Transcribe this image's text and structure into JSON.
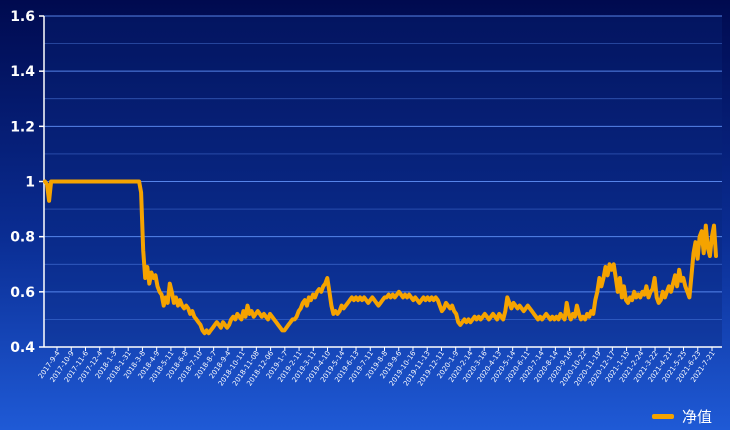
{
  "chart_data": {
    "type": "line",
    "title": "",
    "xlabel": "",
    "ylabel": "",
    "ylim": [
      0.4,
      1.6
    ],
    "yticks": [
      "0.4",
      "0.6",
      "0.8",
      "1",
      "1.2",
      "1.4",
      "1.6"
    ],
    "grid": true,
    "legend_position": "bottom-right",
    "colors": {
      "line": "#f5a300",
      "background_top": "#000a4f",
      "background_bottom": "#1f5ad6",
      "grid": "#5f8ff5"
    },
    "x_ticks": [
      "2017-9-4",
      "2017-10-9",
      "2017-11-6",
      "2017-12-4",
      "2018-1-3",
      "2018-1-31",
      "2018-3-8",
      "2018-4-9",
      "2018-5-11",
      "2018-6-8",
      "2018-7-10",
      "2018-8-7",
      "2018-9-4",
      "2018-10-11",
      "2018-11-08",
      "2018-12-06",
      "2019-1-7",
      "2019-2-11",
      "2019-3-11",
      "2019-4-10",
      "2019-5-14",
      "2019-6-13",
      "2019-7-11",
      "2019-8-8",
      "2019-9-6",
      "2019-10-16",
      "2019-11-13",
      "2019-12-11",
      "2020-1-9",
      "2020-2-14",
      "2020-3-16",
      "2020-4-13",
      "2020-5-14",
      "2020-6-11",
      "2020-7-14",
      "2020-8-14",
      "2020-9-16",
      "2020-10-22",
      "2020-11-19",
      "2020-12-17",
      "2021-1-15",
      "2021-2-24",
      "2021-3-22",
      "2021-4-21",
      "2021-5-25",
      "2021-6-23",
      "2021-7-21"
    ],
    "series": [
      {
        "name": "净值",
        "values": [
          1.0,
          0.99,
          0.93,
          1.0,
          1.0,
          1.0,
          1.0,
          1.0,
          1.0,
          1.0,
          1.0,
          1.0,
          1.0,
          1.0,
          1.0,
          1.0,
          1.0,
          1.0,
          1.0,
          1.0,
          1.0,
          1.0,
          1.0,
          1.0,
          1.0,
          1.0,
          1.0,
          1.0,
          1.0,
          1.0,
          1.0,
          1.0,
          1.0,
          1.0,
          1.0,
          1.0,
          1.0,
          1.0,
          1.0,
          1.0,
          1.0,
          1.0,
          1.0,
          1.0,
          1.0,
          1.0,
          1.0,
          0.96,
          0.75,
          0.65,
          0.69,
          0.63,
          0.67,
          0.65,
          0.66,
          0.62,
          0.6,
          0.59,
          0.55,
          0.58,
          0.56,
          0.63,
          0.6,
          0.56,
          0.58,
          0.55,
          0.57,
          0.55,
          0.54,
          0.55,
          0.54,
          0.52,
          0.53,
          0.51,
          0.5,
          0.49,
          0.48,
          0.46,
          0.45,
          0.46,
          0.45,
          0.46,
          0.47,
          0.48,
          0.49,
          0.48,
          0.47,
          0.49,
          0.48,
          0.47,
          0.48,
          0.5,
          0.51,
          0.5,
          0.52,
          0.51,
          0.5,
          0.53,
          0.51,
          0.55,
          0.52,
          0.53,
          0.51,
          0.52,
          0.53,
          0.52,
          0.51,
          0.52,
          0.51,
          0.5,
          0.52,
          0.51,
          0.5,
          0.49,
          0.48,
          0.47,
          0.46,
          0.46,
          0.47,
          0.48,
          0.49,
          0.5,
          0.5,
          0.51,
          0.53,
          0.54,
          0.56,
          0.57,
          0.55,
          0.58,
          0.57,
          0.59,
          0.58,
          0.6,
          0.61,
          0.6,
          0.62,
          0.63,
          0.65,
          0.6,
          0.55,
          0.52,
          0.53,
          0.52,
          0.53,
          0.55,
          0.54,
          0.55,
          0.56,
          0.57,
          0.58,
          0.57,
          0.58,
          0.57,
          0.58,
          0.57,
          0.58,
          0.57,
          0.56,
          0.57,
          0.58,
          0.57,
          0.56,
          0.55,
          0.56,
          0.57,
          0.58,
          0.58,
          0.59,
          0.58,
          0.59,
          0.58,
          0.59,
          0.6,
          0.59,
          0.58,
          0.59,
          0.58,
          0.59,
          0.58,
          0.57,
          0.58,
          0.57,
          0.56,
          0.57,
          0.58,
          0.57,
          0.58,
          0.57,
          0.58,
          0.57,
          0.58,
          0.57,
          0.55,
          0.53,
          0.54,
          0.56,
          0.55,
          0.54,
          0.55,
          0.53,
          0.52,
          0.49,
          0.48,
          0.49,
          0.5,
          0.49,
          0.5,
          0.49,
          0.5,
          0.51,
          0.5,
          0.51,
          0.5,
          0.51,
          0.52,
          0.51,
          0.5,
          0.51,
          0.52,
          0.51,
          0.5,
          0.52,
          0.51,
          0.5,
          0.53,
          0.58,
          0.56,
          0.54,
          0.56,
          0.55,
          0.54,
          0.55,
          0.54,
          0.53,
          0.54,
          0.55,
          0.54,
          0.53,
          0.52,
          0.51,
          0.5,
          0.51,
          0.5,
          0.51,
          0.52,
          0.51,
          0.5,
          0.51,
          0.5,
          0.51,
          0.5,
          0.52,
          0.51,
          0.5,
          0.56,
          0.52,
          0.5,
          0.52,
          0.51,
          0.55,
          0.52,
          0.5,
          0.51,
          0.5,
          0.52,
          0.51,
          0.53,
          0.52,
          0.57,
          0.6,
          0.65,
          0.62,
          0.65,
          0.69,
          0.66,
          0.7,
          0.68,
          0.7,
          0.65,
          0.6,
          0.65,
          0.58,
          0.62,
          0.57,
          0.56,
          0.58,
          0.57,
          0.6,
          0.58,
          0.59,
          0.58,
          0.6,
          0.59,
          0.62,
          0.58,
          0.6,
          0.61,
          0.65,
          0.58,
          0.56,
          0.57,
          0.6,
          0.58,
          0.6,
          0.62,
          0.6,
          0.63,
          0.66,
          0.62,
          0.68,
          0.64,
          0.65,
          0.62,
          0.6,
          0.58,
          0.66,
          0.74,
          0.78,
          0.72,
          0.8,
          0.82,
          0.74,
          0.84,
          0.76,
          0.73,
          0.8,
          0.84,
          0.73
        ]
      }
    ]
  }
}
